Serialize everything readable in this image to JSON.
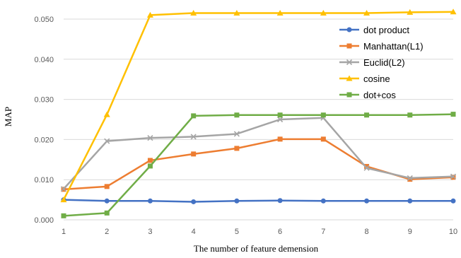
{
  "chart_data": {
    "type": "line",
    "xlabel": "The number of feature demension",
    "ylabel": "MAP",
    "x": [
      1,
      2,
      3,
      4,
      5,
      6,
      7,
      8,
      9,
      10
    ],
    "ylim": [
      0,
      0.05
    ],
    "y_ticks": [
      "0.000",
      "0.010",
      "0.020",
      "0.030",
      "0.040",
      "0.050"
    ],
    "grid": "horizontal",
    "legend_position": "top-right",
    "series": [
      {
        "name": "dot product",
        "color": "#4472C4",
        "marker": "circle",
        "values": [
          0.005,
          0.0047,
          0.0047,
          0.0045,
          0.0047,
          0.0048,
          0.0047,
          0.0047,
          0.0047,
          0.0047
        ]
      },
      {
        "name": "Manhattan(L1)",
        "color": "#ED7D31",
        "marker": "square",
        "values": [
          0.0076,
          0.0083,
          0.0148,
          0.0164,
          0.0178,
          0.0201,
          0.0201,
          0.0133,
          0.0101,
          0.0106
        ]
      },
      {
        "name": "Euclid(L2)",
        "color": "#A5A5A5",
        "marker": "x",
        "values": [
          0.0077,
          0.0196,
          0.0204,
          0.0207,
          0.0214,
          0.025,
          0.0254,
          0.0129,
          0.0104,
          0.0108
        ]
      },
      {
        "name": "cosine",
        "color": "#FFC000",
        "marker": "triangle",
        "values": [
          0.005,
          0.0262,
          0.051,
          0.0515,
          0.0515,
          0.0515,
          0.0515,
          0.0515,
          0.0517,
          0.0518
        ]
      },
      {
        "name": "dot+cos",
        "color": "#70AD47",
        "marker": "square",
        "values": [
          0.001,
          0.0017,
          0.0134,
          0.0259,
          0.0261,
          0.0261,
          0.0261,
          0.0261,
          0.0261,
          0.0263
        ]
      }
    ]
  }
}
